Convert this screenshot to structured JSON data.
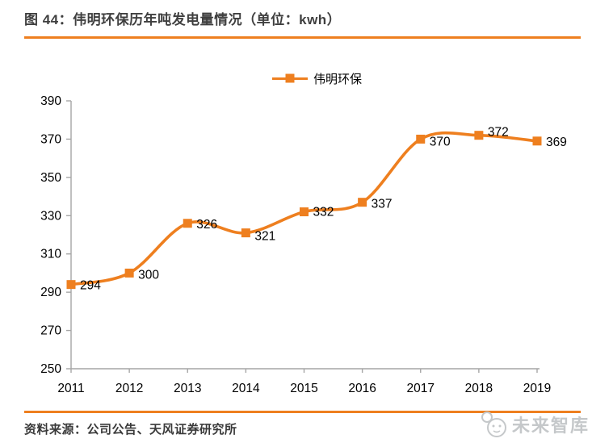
{
  "figure": {
    "title": "图 44：伟明环保历年吨发电量情况（单位：kwh）",
    "source": "资料来源：公司公告、天风证券研究所",
    "watermark": "未来智库"
  },
  "colors": {
    "accent_orange": "#EE7F1F",
    "axis_gray": "#A6A6A6",
    "label_black": "#000000",
    "title_gray": "#3F3F3F",
    "watermark_gray": "#C5C8CA"
  },
  "chart_data": {
    "type": "line",
    "smooth": true,
    "title": "图 44：伟明环保历年吨发电量情况（单位：kwh）",
    "unit": "kwh",
    "categories": [
      "2011",
      "2012",
      "2013",
      "2014",
      "2015",
      "2016",
      "2017",
      "2018",
      "2019"
    ],
    "series": [
      {
        "name": "伟明环保",
        "color": "#EE7F1F",
        "marker": "square",
        "values": [
          294,
          300,
          326,
          321,
          332,
          337,
          370,
          372,
          369
        ]
      }
    ],
    "ylim": [
      250,
      390
    ],
    "ytick_step": 20,
    "grid": false,
    "legend_position": "top-center",
    "data_labels": true
  }
}
